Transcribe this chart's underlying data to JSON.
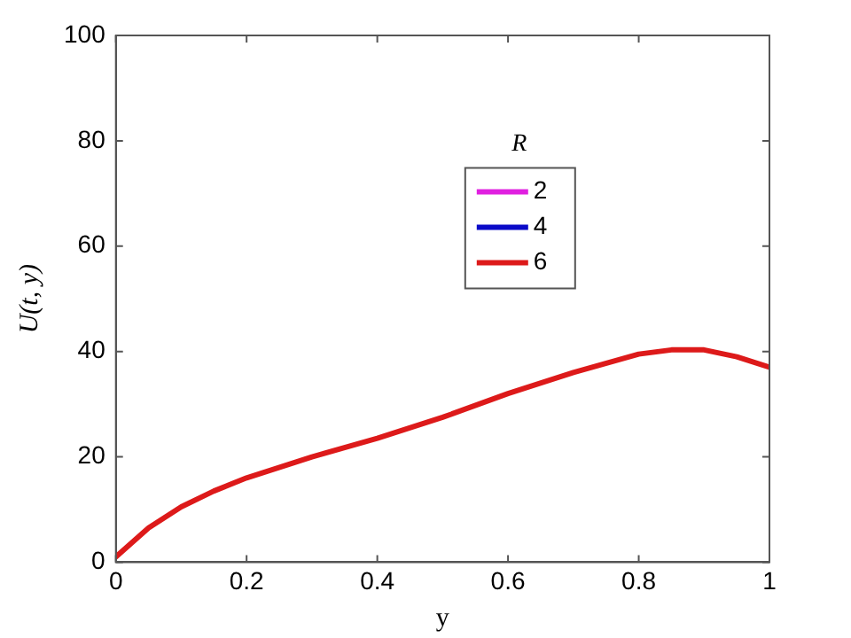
{
  "chart_data": {
    "type": "line",
    "xlabel": "y",
    "ylabel": "U(t, y)",
    "legend_title": "R",
    "x": [
      0,
      0.05,
      0.1,
      0.15,
      0.2,
      0.3,
      0.4,
      0.5,
      0.6,
      0.7,
      0.8,
      0.85,
      0.9,
      0.95,
      1
    ],
    "series": [
      {
        "name": "2",
        "color": "#e020e0",
        "values": [
          null,
          null,
          null,
          null,
          null,
          null,
          null,
          null,
          null,
          null,
          null,
          null,
          null,
          null,
          null
        ]
      },
      {
        "name": "4",
        "color": "#0a0ac8",
        "values": [
          null,
          null,
          null,
          null,
          null,
          null,
          null,
          null,
          null,
          null,
          null,
          null,
          null,
          null,
          null
        ]
      },
      {
        "name": "6",
        "color": "#dd1a1a",
        "values": [
          1,
          6.5,
          10.5,
          13.5,
          16,
          20,
          23.5,
          27.5,
          32,
          36,
          39.5,
          40.3,
          40.3,
          39,
          37
        ]
      }
    ],
    "xlim": [
      0,
      1
    ],
    "xticks": [
      0,
      0.2,
      0.4,
      0.6,
      0.8,
      1
    ],
    "ylim": [
      0,
      100
    ],
    "yticks": [
      0,
      20,
      40,
      60,
      80,
      100
    ],
    "grid": false,
    "legend": "top right",
    "marker": "none",
    "line_style": "solid"
  }
}
